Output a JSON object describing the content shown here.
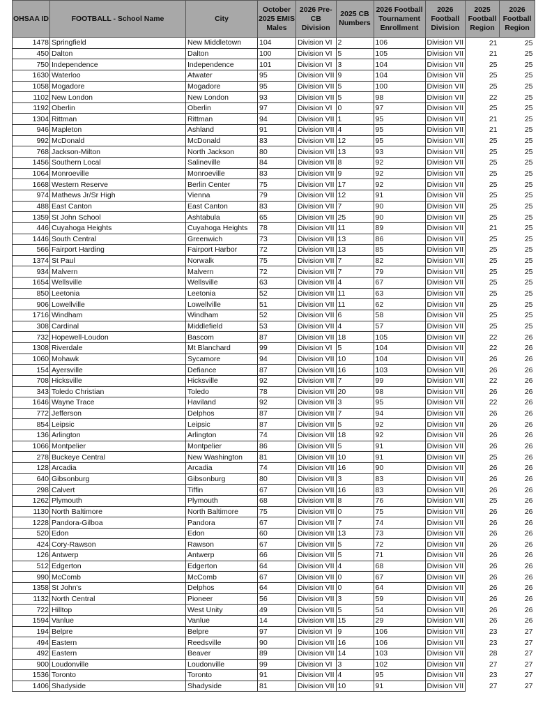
{
  "headers": [
    "OHSAA ID",
    "FOOTBALL - School Name",
    "City",
    "October 2025 EMIS Males",
    "2026 Pre-CB Division",
    "2025 CB Numbers",
    "2026 Football Tournament Enrollment",
    "2026 Football Division",
    "2025 Football Region",
    "2026 Football Region"
  ],
  "rows": [
    [
      "1478",
      "Springfield",
      "New Middletown",
      "104",
      "Division VI",
      "2",
      "106",
      "Division VII",
      "21",
      "25"
    ],
    [
      "450",
      "Dalton",
      "Dalton",
      "100",
      "Division VI",
      "5",
      "105",
      "Division VII",
      "21",
      "25"
    ],
    [
      "750",
      "Independence",
      "Independence",
      "101",
      "Division VI",
      "3",
      "104",
      "Division VII",
      "25",
      "25"
    ],
    [
      "1630",
      "Waterloo",
      "Atwater",
      "95",
      "Division VII",
      "9",
      "104",
      "Division VII",
      "25",
      "25"
    ],
    [
      "1058",
      "Mogadore",
      "Mogadore",
      "95",
      "Division VII",
      "5",
      "100",
      "Division VII",
      "25",
      "25"
    ],
    [
      "1102",
      "New London",
      "New London",
      "93",
      "Division VII",
      "5",
      "98",
      "Division VII",
      "22",
      "25"
    ],
    [
      "1192",
      "Oberlin",
      "Oberlin",
      "97",
      "Division VI",
      "0",
      "97",
      "Division VII",
      "25",
      "25"
    ],
    [
      "1304",
      "Rittman",
      "Rittman",
      "94",
      "Division VII",
      "1",
      "95",
      "Division VII",
      "21",
      "25"
    ],
    [
      "946",
      "Mapleton",
      "Ashland",
      "91",
      "Division VII",
      "4",
      "95",
      "Division VII",
      "21",
      "25"
    ],
    [
      "992",
      "McDonald",
      "McDonald",
      "83",
      "Division VII",
      "12",
      "95",
      "Division VII",
      "25",
      "25"
    ],
    [
      "768",
      "Jackson-Milton",
      "North Jackson",
      "80",
      "Division VII",
      "13",
      "93",
      "Division VII",
      "25",
      "25"
    ],
    [
      "1456",
      "Southern Local",
      "Salineville",
      "84",
      "Division VII",
      "8",
      "92",
      "Division VII",
      "25",
      "25"
    ],
    [
      "1064",
      "Monroeville",
      "Monroeville",
      "83",
      "Division VII",
      "9",
      "92",
      "Division VII",
      "25",
      "25"
    ],
    [
      "1668",
      "Western Reserve",
      "Berlin Center",
      "75",
      "Division VII",
      "17",
      "92",
      "Division VII",
      "25",
      "25"
    ],
    [
      "974",
      "Mathews Jr/Sr High",
      "Vienna",
      "79",
      "Division VII",
      "12",
      "91",
      "Division VII",
      "25",
      "25"
    ],
    [
      "488",
      "East Canton",
      "East Canton",
      "83",
      "Division VII",
      "7",
      "90",
      "Division VII",
      "25",
      "25"
    ],
    [
      "1359",
      "St John School",
      "Ashtabula",
      "65",
      "Division VII",
      "25",
      "90",
      "Division VII",
      "25",
      "25"
    ],
    [
      "446",
      "Cuyahoga Heights",
      "Cuyahoga Heights",
      "78",
      "Division VII",
      "11",
      "89",
      "Division VII",
      "21",
      "25"
    ],
    [
      "1446",
      "South Central",
      "Greenwich",
      "73",
      "Division VII",
      "13",
      "86",
      "Division VII",
      "25",
      "25"
    ],
    [
      "566",
      "Fairport Harding",
      "Fairport Harbor",
      "72",
      "Division VII",
      "13",
      "85",
      "Division VII",
      "25",
      "25"
    ],
    [
      "1374",
      "St Paul",
      "Norwalk",
      "75",
      "Division VII",
      "7",
      "82",
      "Division VII",
      "25",
      "25"
    ],
    [
      "934",
      "Malvern",
      "Malvern",
      "72",
      "Division VII",
      "7",
      "79",
      "Division VII",
      "25",
      "25"
    ],
    [
      "1654",
      "Wellsville",
      "Wellsville",
      "63",
      "Division VII",
      "4",
      "67",
      "Division VII",
      "25",
      "25"
    ],
    [
      "850",
      "Leetonia",
      "Leetonia",
      "52",
      "Division VII",
      "11",
      "63",
      "Division VII",
      "25",
      "25"
    ],
    [
      "906",
      "Lowellville",
      "Lowellville",
      "51",
      "Division VII",
      "11",
      "62",
      "Division VII",
      "25",
      "25"
    ],
    [
      "1716",
      "Windham",
      "Windham",
      "52",
      "Division VII",
      "6",
      "58",
      "Division VII",
      "25",
      "25"
    ],
    [
      "308",
      "Cardinal",
      "Middlefield",
      "53",
      "Division VII",
      "4",
      "57",
      "Division VII",
      "25",
      "25"
    ],
    [
      "732",
      "Hopewell-Loudon",
      "Bascom",
      "87",
      "Division VII",
      "18",
      "105",
      "Division VII",
      "22",
      "26"
    ],
    [
      "1308",
      "Riverdale",
      "Mt Blanchard",
      "99",
      "Division VI",
      "5",
      "104",
      "Division VII",
      "22",
      "26"
    ],
    [
      "1060",
      "Mohawk",
      "Sycamore",
      "94",
      "Division VII",
      "10",
      "104",
      "Division VII",
      "26",
      "26"
    ],
    [
      "154",
      "Ayersville",
      "Defiance",
      "87",
      "Division VII",
      "16",
      "103",
      "Division VII",
      "26",
      "26"
    ],
    [
      "708",
      "Hicksville",
      "Hicksville",
      "92",
      "Division VII",
      "7",
      "99",
      "Division VII",
      "22",
      "26"
    ],
    [
      "343",
      "Toledo Christian",
      "Toledo",
      "78",
      "Division VII",
      "20",
      "98",
      "Division VII",
      "26",
      "26"
    ],
    [
      "1646",
      "Wayne Trace",
      "Haviland",
      "92",
      "Division VII",
      "3",
      "95",
      "Division VII",
      "22",
      "26"
    ],
    [
      "772",
      "Jefferson",
      "Delphos",
      "87",
      "Division VII",
      "7",
      "94",
      "Division VII",
      "26",
      "26"
    ],
    [
      "854",
      "Leipsic",
      "Leipsic",
      "87",
      "Division VII",
      "5",
      "92",
      "Division VII",
      "26",
      "26"
    ],
    [
      "136",
      "Arlington",
      "Arlington",
      "74",
      "Division VII",
      "18",
      "92",
      "Division VII",
      "26",
      "26"
    ],
    [
      "1066",
      "Montpelier",
      "Montpelier",
      "86",
      "Division VII",
      "5",
      "91",
      "Division VII",
      "26",
      "26"
    ],
    [
      "278",
      "Buckeye Central",
      "New Washington",
      "81",
      "Division VII",
      "10",
      "91",
      "Division VII",
      "25",
      "26"
    ],
    [
      "128",
      "Arcadia",
      "Arcadia",
      "74",
      "Division VII",
      "16",
      "90",
      "Division VII",
      "26",
      "26"
    ],
    [
      "640",
      "Gibsonburg",
      "Gibsonburg",
      "80",
      "Division VII",
      "3",
      "83",
      "Division VII",
      "26",
      "26"
    ],
    [
      "298",
      "Calvert",
      "Tiffin",
      "67",
      "Division VII",
      "16",
      "83",
      "Division VII",
      "26",
      "26"
    ],
    [
      "1262",
      "Plymouth",
      "Plymouth",
      "68",
      "Division VII",
      "8",
      "76",
      "Division VII",
      "25",
      "26"
    ],
    [
      "1130",
      "North Baltimore",
      "North Baltimore",
      "75",
      "Division VII",
      "0",
      "75",
      "Division VII",
      "26",
      "26"
    ],
    [
      "1228",
      "Pandora-Gilboa",
      "Pandora",
      "67",
      "Division VII",
      "7",
      "74",
      "Division VII",
      "26",
      "26"
    ],
    [
      "520",
      "Edon",
      "Edon",
      "60",
      "Division VII",
      "13",
      "73",
      "Division VII",
      "26",
      "26"
    ],
    [
      "424",
      "Cory-Rawson",
      "Rawson",
      "67",
      "Division VII",
      "5",
      "72",
      "Division VII",
      "26",
      "26"
    ],
    [
      "126",
      "Antwerp",
      "Antwerp",
      "66",
      "Division VII",
      "5",
      "71",
      "Division VII",
      "26",
      "26"
    ],
    [
      "512",
      "Edgerton",
      "Edgerton",
      "64",
      "Division VII",
      "4",
      "68",
      "Division VII",
      "26",
      "26"
    ],
    [
      "990",
      "McComb",
      "McComb",
      "67",
      "Division VII",
      "0",
      "67",
      "Division VII",
      "26",
      "26"
    ],
    [
      "1358",
      "St John's",
      "Delphos",
      "64",
      "Division VII",
      "0",
      "64",
      "Division VII",
      "26",
      "26"
    ],
    [
      "1132",
      "North Central",
      "Pioneer",
      "56",
      "Division VII",
      "3",
      "59",
      "Division VII",
      "26",
      "26"
    ],
    [
      "722",
      "Hilltop",
      "West Unity",
      "49",
      "Division VII",
      "5",
      "54",
      "Division VII",
      "26",
      "26"
    ],
    [
      "1594",
      "Vanlue",
      "Vanlue",
      "14",
      "Division VII",
      "15",
      "29",
      "Division VII",
      "26",
      "26"
    ],
    [
      "194",
      "Belpre",
      "Belpre",
      "97",
      "Division VI",
      "9",
      "106",
      "Division VII",
      "23",
      "27"
    ],
    [
      "494",
      "Eastern",
      "Reedsville",
      "90",
      "Division VII",
      "16",
      "106",
      "Division VII",
      "23",
      "27"
    ],
    [
      "492",
      "Eastern",
      "Beaver",
      "89",
      "Division VII",
      "14",
      "103",
      "Division VII",
      "28",
      "27"
    ],
    [
      "900",
      "Loudonville",
      "Loudonville",
      "99",
      "Division VI",
      "3",
      "102",
      "Division VII",
      "27",
      "27"
    ],
    [
      "1536",
      "Toronto",
      "Toronto",
      "91",
      "Division VII",
      "4",
      "95",
      "Division VII",
      "23",
      "27"
    ],
    [
      "1406",
      "Shadyside",
      "Shadyside",
      "81",
      "Division VII",
      "10",
      "91",
      "Division VII",
      "27",
      "27"
    ]
  ]
}
